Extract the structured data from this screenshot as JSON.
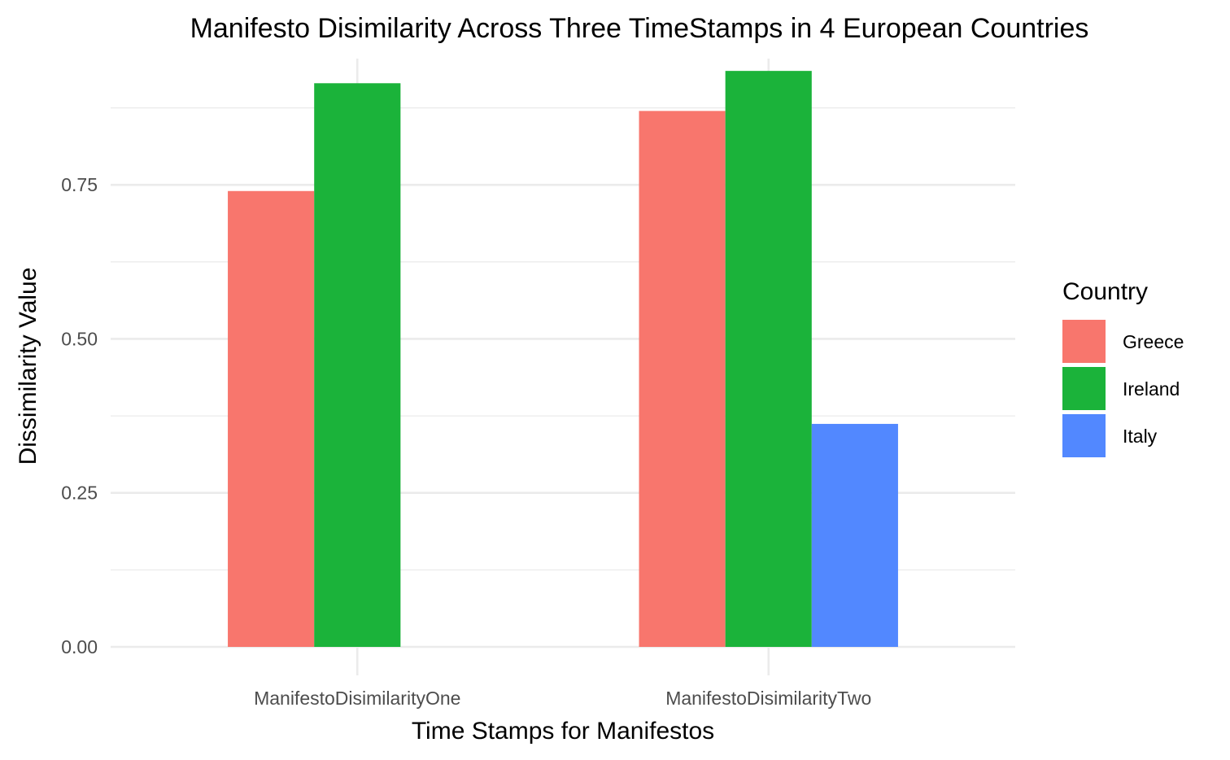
{
  "chart_data": {
    "type": "bar",
    "title": "Manifesto Disimilarity Across Three TimeStamps in 4 European Countries",
    "xlabel": "Time Stamps for Manifestos",
    "ylabel": "Dissimilarity Value",
    "categories": [
      "ManifestoDisimilarityOne",
      "ManifestoDisimilarityTwo"
    ],
    "series": [
      {
        "name": "Greece",
        "color": "#F8766D",
        "values": [
          0.74,
          0.87
        ]
      },
      {
        "name": "Ireland",
        "color": "#1BB33A",
        "values": [
          0.915,
          0.935
        ]
      },
      {
        "name": "Italy",
        "color": "#5288FF",
        "values": [
          null,
          0.362
        ]
      }
    ],
    "ylim": [
      0,
      0.955
    ],
    "yticks": [
      0,
      0.25,
      0.5,
      0.75
    ],
    "ytick_labels": [
      "0.00",
      "0.25",
      "0.50",
      "0.75"
    ],
    "grid": true,
    "legend": {
      "title": "Country",
      "position": "right"
    }
  }
}
